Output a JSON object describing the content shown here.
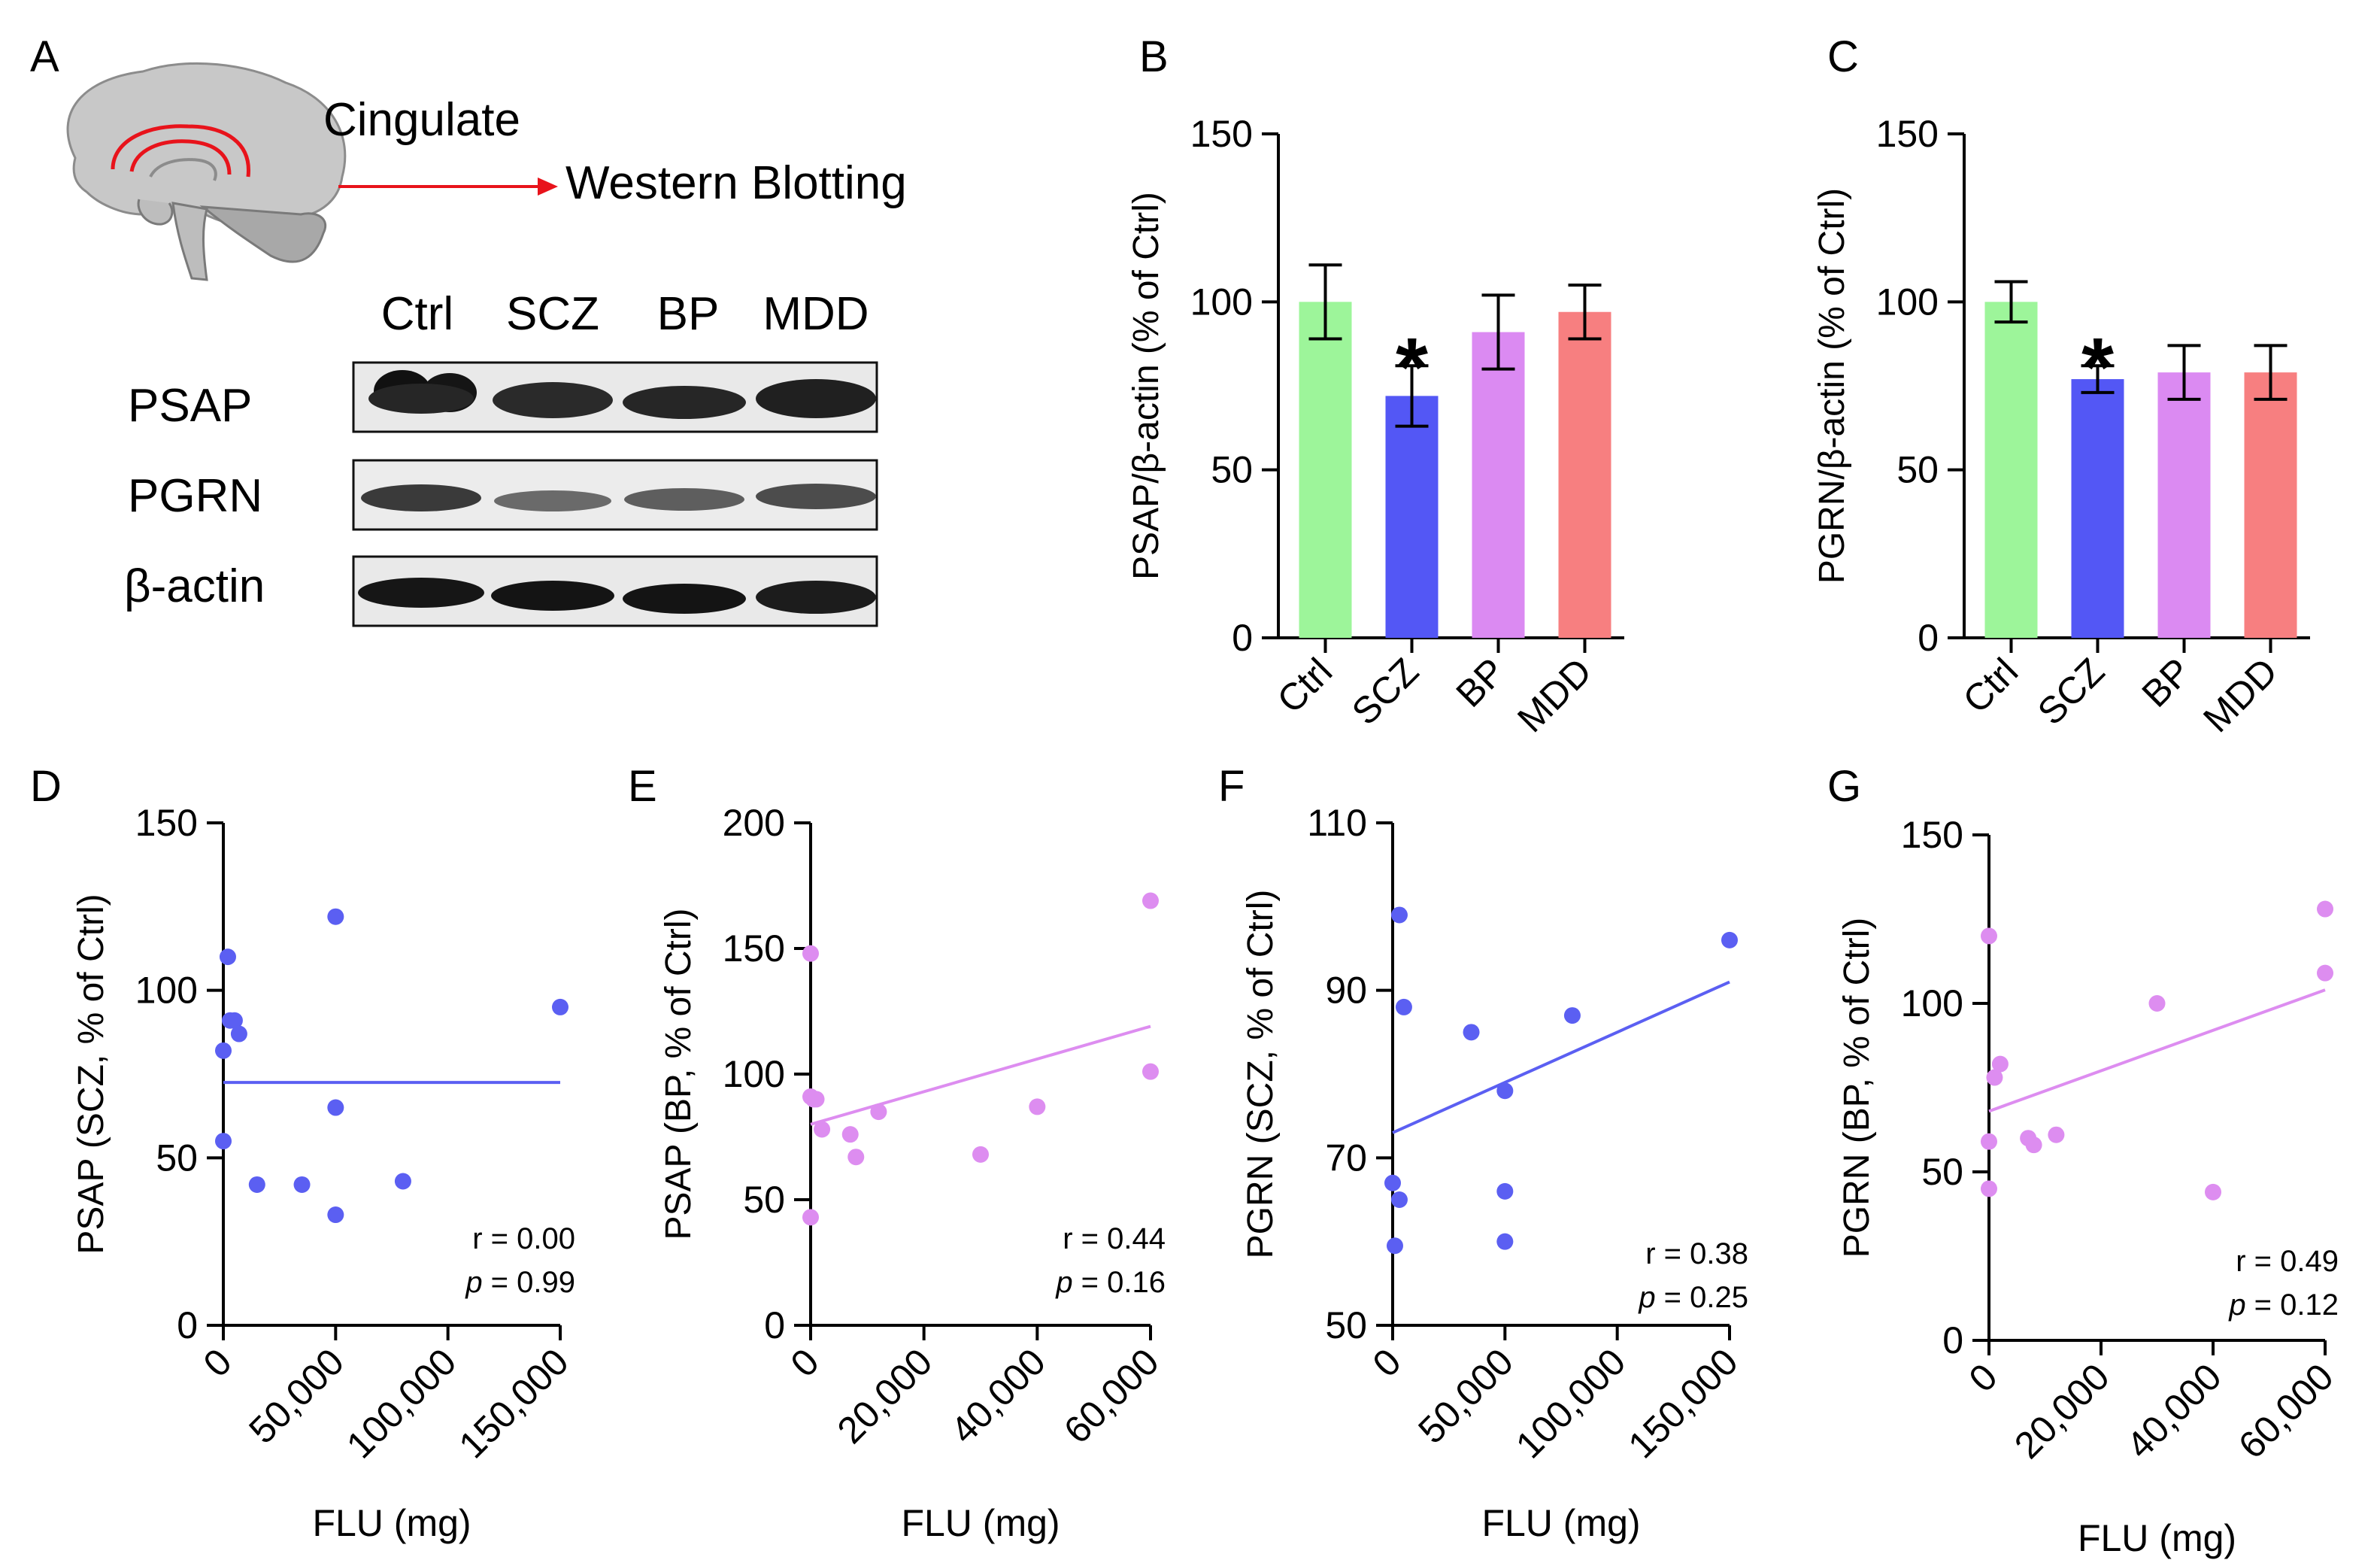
{
  "colors": {
    "ctrl": "#9df59a",
    "scz": "#5357f5",
    "bp": "#db8af2",
    "mdd": "#f77f80",
    "scz_dot": "#5b5ff2",
    "bp_dot": "#dd8df0",
    "arrow": "#e8131b"
  },
  "panel_a": {
    "label": "A",
    "region": "Cingulate",
    "method": "Western Blotting",
    "lanes": [
      "Ctrl",
      "SCZ",
      "BP",
      "MDD"
    ],
    "proteins": [
      "PSAP",
      "PGRN",
      "β-actin"
    ],
    "brain_icon": "brain-sagittal-icon"
  },
  "chart_data": [
    {
      "id": "B",
      "type": "bar",
      "panel_label": "B",
      "categories": [
        "Ctrl",
        "SCZ",
        "BP",
        "MDD"
      ],
      "values": [
        100,
        72,
        91,
        97
      ],
      "errors": [
        11,
        9,
        11,
        8
      ],
      "significance": [
        "",
        "*",
        "",
        ""
      ],
      "ylabel": "PSAP/β-actin (% of Ctrl)",
      "ylim": [
        0,
        150
      ],
      "yticks": [
        0,
        50,
        100,
        150
      ]
    },
    {
      "id": "C",
      "type": "bar",
      "panel_label": "C",
      "categories": [
        "Ctrl",
        "SCZ",
        "BP",
        "MDD"
      ],
      "values": [
        100,
        77,
        79,
        79
      ],
      "errors": [
        6,
        4,
        8,
        8
      ],
      "significance": [
        "",
        "*",
        "",
        ""
      ],
      "ylabel": "PGRN/β-actin (% of Ctrl)",
      "ylim": [
        0,
        150
      ],
      "yticks": [
        0,
        50,
        100,
        150
      ]
    },
    {
      "id": "D",
      "type": "scatter",
      "panel_label": "D",
      "series_color": "scz_dot",
      "x": [
        0,
        0,
        2000,
        5000,
        7000,
        3000,
        15000,
        35000,
        50000,
        50000,
        50000,
        80000,
        150000
      ],
      "y": [
        82,
        55,
        110,
        91,
        87,
        91,
        42,
        42,
        122,
        65,
        33,
        43,
        95
      ],
      "fit": {
        "x": [
          0,
          150000
        ],
        "y": [
          72.5,
          72.5
        ]
      },
      "xlabel": "FLU (mg)",
      "ylabel": "PSAP (SCZ, % of Ctrl)",
      "xlim": [
        0,
        150000
      ],
      "ylim": [
        0,
        150
      ],
      "xticks": [
        "0",
        "50,000",
        "100,000",
        "150,000"
      ],
      "xtick_values": [
        0,
        50000,
        100000,
        150000
      ],
      "yticks": [
        0,
        50,
        100,
        150
      ],
      "r": "r = 0.00",
      "p_label": "p",
      "p_value": " = 0.99"
    },
    {
      "id": "E",
      "type": "scatter",
      "panel_label": "E",
      "series_color": "bp_dot",
      "x": [
        0,
        0,
        500,
        1000,
        2000,
        7000,
        8000,
        12000,
        30000,
        40000,
        60000,
        60000,
        0
      ],
      "y": [
        148,
        91,
        90,
        90,
        78,
        76,
        67,
        85,
        68,
        87,
        169,
        101,
        43
      ],
      "fit": {
        "x": [
          0,
          60000
        ],
        "y": [
          80,
          119
        ]
      },
      "xlabel": "FLU (mg)",
      "ylabel": "PSAP (BP, % of Ctrl)",
      "xlim": [
        0,
        60000
      ],
      "ylim": [
        0,
        200
      ],
      "xticks": [
        "0",
        "20,000",
        "40,000",
        "60,000"
      ],
      "xtick_values": [
        0,
        20000,
        40000,
        60000
      ],
      "yticks": [
        0,
        50,
        100,
        150,
        200
      ],
      "r": "r = 0.44",
      "p_label": "p",
      "p_value": " = 0.16"
    },
    {
      "id": "F",
      "type": "scatter",
      "panel_label": "F",
      "series_color": "scz_dot",
      "x": [
        3000,
        5000,
        0,
        3000,
        1000,
        35000,
        50000,
        50000,
        50000,
        80000,
        150000
      ],
      "y": [
        99,
        88,
        67,
        65,
        59.5,
        85,
        78,
        66,
        60,
        87,
        96
      ],
      "fit": {
        "x": [
          0,
          150000
        ],
        "y": [
          73,
          91
        ]
      },
      "xlabel": "FLU (mg)",
      "ylabel": "PGRN (SCZ, % of Ctrl)",
      "xlim": [
        0,
        150000
      ],
      "ylim": [
        50,
        110
      ],
      "xticks": [
        "0",
        "50,000",
        "100,000",
        "150,000"
      ],
      "xtick_values": [
        0,
        50000,
        100000,
        150000
      ],
      "yticks": [
        50,
        70,
        90,
        110
      ],
      "r": "r = 0.38",
      "p_label": "p",
      "p_value": " = 0.25"
    },
    {
      "id": "G",
      "type": "scatter",
      "panel_label": "G",
      "series_color": "bp_dot",
      "x": [
        0,
        0,
        0,
        1000,
        2000,
        7000,
        8000,
        12000,
        30000,
        40000,
        60000,
        60000
      ],
      "y": [
        120,
        59,
        45,
        78,
        82,
        60,
        58,
        61,
        100,
        44,
        128,
        109
      ],
      "fit": {
        "x": [
          0,
          60000
        ],
        "y": [
          68,
          104
        ]
      },
      "xlabel": "FLU (mg)",
      "ylabel": "PGRN (BP, % of Ctrl)",
      "xlim": [
        0,
        60000
      ],
      "ylim": [
        0,
        150
      ],
      "xticks": [
        "0",
        "20,000",
        "40,000",
        "60,000"
      ],
      "xtick_values": [
        0,
        20000,
        40000,
        60000
      ],
      "yticks": [
        0,
        50,
        100,
        150
      ],
      "r": "r = 0.49",
      "p_label": "p",
      "p_value": " = 0.12"
    }
  ]
}
